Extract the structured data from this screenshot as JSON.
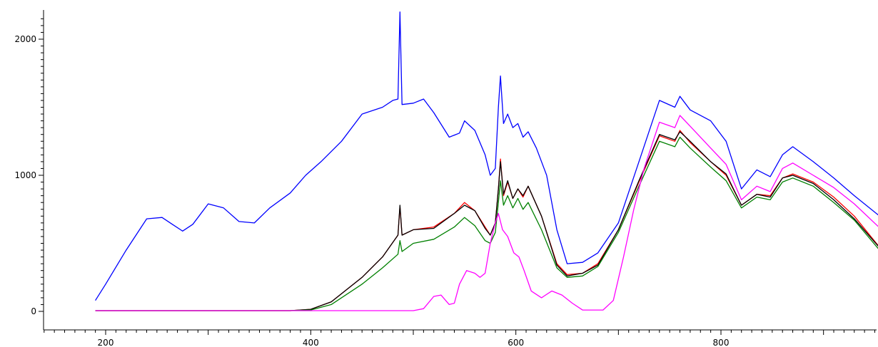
{
  "chart_data": {
    "type": "line",
    "title": "",
    "xlabel": "",
    "ylabel": "",
    "xlim": [
      140,
      960
    ],
    "ylim": [
      -50,
      2200
    ],
    "x_ticks": [
      "200",
      "400",
      "600",
      "800"
    ],
    "y_ticks": [
      "0",
      "1000",
      "2000"
    ],
    "grid": false,
    "legend": "none",
    "series": [
      {
        "color": "#0000ff",
        "points": [
          [
            190,
            80
          ],
          [
            200,
            200
          ],
          [
            220,
            450
          ],
          [
            240,
            680
          ],
          [
            255,
            690
          ],
          [
            265,
            640
          ],
          [
            275,
            590
          ],
          [
            285,
            640
          ],
          [
            300,
            790
          ],
          [
            315,
            760
          ],
          [
            330,
            660
          ],
          [
            345,
            650
          ],
          [
            360,
            760
          ],
          [
            380,
            870
          ],
          [
            395,
            1000
          ],
          [
            410,
            1100
          ],
          [
            430,
            1250
          ],
          [
            450,
            1450
          ],
          [
            470,
            1500
          ],
          [
            480,
            1550
          ],
          [
            485,
            1560
          ],
          [
            487,
            2200
          ],
          [
            489,
            1520
          ],
          [
            500,
            1530
          ],
          [
            510,
            1560
          ],
          [
            520,
            1460
          ],
          [
            535,
            1280
          ],
          [
            545,
            1310
          ],
          [
            550,
            1400
          ],
          [
            560,
            1330
          ],
          [
            570,
            1150
          ],
          [
            575,
            1000
          ],
          [
            580,
            1050
          ],
          [
            583,
            1500
          ],
          [
            585,
            1730
          ],
          [
            588,
            1380
          ],
          [
            592,
            1450
          ],
          [
            597,
            1350
          ],
          [
            602,
            1380
          ],
          [
            607,
            1280
          ],
          [
            612,
            1320
          ],
          [
            620,
            1200
          ],
          [
            630,
            1000
          ],
          [
            640,
            600
          ],
          [
            650,
            350
          ],
          [
            665,
            360
          ],
          [
            680,
            430
          ],
          [
            700,
            650
          ],
          [
            720,
            1100
          ],
          [
            740,
            1550
          ],
          [
            755,
            1500
          ],
          [
            760,
            1580
          ],
          [
            770,
            1480
          ],
          [
            790,
            1400
          ],
          [
            805,
            1250
          ],
          [
            820,
            900
          ],
          [
            835,
            1040
          ],
          [
            848,
            990
          ],
          [
            860,
            1150
          ],
          [
            870,
            1210
          ],
          [
            890,
            1100
          ],
          [
            910,
            980
          ],
          [
            930,
            850
          ],
          [
            958,
            680
          ]
        ]
      },
      {
        "color": "#ff0000",
        "points": [
          [
            190,
            5
          ],
          [
            380,
            5
          ],
          [
            400,
            15
          ],
          [
            420,
            70
          ],
          [
            450,
            250
          ],
          [
            470,
            400
          ],
          [
            485,
            560
          ],
          [
            487,
            770
          ],
          [
            489,
            560
          ],
          [
            500,
            600
          ],
          [
            520,
            620
          ],
          [
            540,
            720
          ],
          [
            550,
            800
          ],
          [
            560,
            740
          ],
          [
            570,
            620
          ],
          [
            575,
            560
          ],
          [
            580,
            650
          ],
          [
            583,
            900
          ],
          [
            585,
            1120
          ],
          [
            588,
            850
          ],
          [
            592,
            950
          ],
          [
            597,
            830
          ],
          [
            602,
            900
          ],
          [
            607,
            840
          ],
          [
            612,
            920
          ],
          [
            625,
            700
          ],
          [
            640,
            350
          ],
          [
            650,
            270
          ],
          [
            665,
            280
          ],
          [
            680,
            350
          ],
          [
            700,
            600
          ],
          [
            720,
            950
          ],
          [
            740,
            1290
          ],
          [
            755,
            1250
          ],
          [
            760,
            1330
          ],
          [
            770,
            1240
          ],
          [
            790,
            1100
          ],
          [
            805,
            1000
          ],
          [
            820,
            780
          ],
          [
            835,
            860
          ],
          [
            848,
            850
          ],
          [
            860,
            980
          ],
          [
            870,
            1010
          ],
          [
            890,
            950
          ],
          [
            910,
            840
          ],
          [
            930,
            700
          ],
          [
            958,
            440
          ]
        ]
      },
      {
        "color": "#000000",
        "points": [
          [
            190,
            5
          ],
          [
            380,
            5
          ],
          [
            400,
            15
          ],
          [
            420,
            70
          ],
          [
            450,
            250
          ],
          [
            470,
            400
          ],
          [
            485,
            560
          ],
          [
            487,
            780
          ],
          [
            489,
            560
          ],
          [
            500,
            600
          ],
          [
            520,
            610
          ],
          [
            540,
            720
          ],
          [
            550,
            780
          ],
          [
            560,
            740
          ],
          [
            570,
            610
          ],
          [
            575,
            560
          ],
          [
            580,
            650
          ],
          [
            583,
            900
          ],
          [
            585,
            1100
          ],
          [
            588,
            860
          ],
          [
            592,
            960
          ],
          [
            597,
            830
          ],
          [
            602,
            900
          ],
          [
            607,
            850
          ],
          [
            612,
            920
          ],
          [
            625,
            700
          ],
          [
            640,
            340
          ],
          [
            650,
            260
          ],
          [
            665,
            280
          ],
          [
            680,
            340
          ],
          [
            700,
            600
          ],
          [
            720,
            960
          ],
          [
            740,
            1300
          ],
          [
            755,
            1260
          ],
          [
            760,
            1320
          ],
          [
            770,
            1250
          ],
          [
            790,
            1100
          ],
          [
            805,
            1010
          ],
          [
            820,
            780
          ],
          [
            835,
            860
          ],
          [
            848,
            840
          ],
          [
            860,
            980
          ],
          [
            870,
            1000
          ],
          [
            890,
            940
          ],
          [
            910,
            820
          ],
          [
            930,
            680
          ],
          [
            958,
            440
          ]
        ]
      },
      {
        "color": "#008000",
        "points": [
          [
            190,
            5
          ],
          [
            380,
            5
          ],
          [
            400,
            10
          ],
          [
            420,
            50
          ],
          [
            450,
            200
          ],
          [
            470,
            320
          ],
          [
            485,
            420
          ],
          [
            487,
            520
          ],
          [
            489,
            440
          ],
          [
            500,
            500
          ],
          [
            520,
            530
          ],
          [
            540,
            620
          ],
          [
            550,
            690
          ],
          [
            560,
            630
          ],
          [
            570,
            520
          ],
          [
            575,
            500
          ],
          [
            580,
            580
          ],
          [
            583,
            800
          ],
          [
            585,
            960
          ],
          [
            588,
            780
          ],
          [
            592,
            850
          ],
          [
            597,
            760
          ],
          [
            602,
            830
          ],
          [
            607,
            750
          ],
          [
            612,
            800
          ],
          [
            625,
            600
          ],
          [
            640,
            320
          ],
          [
            650,
            250
          ],
          [
            665,
            260
          ],
          [
            680,
            330
          ],
          [
            700,
            580
          ],
          [
            720,
            920
          ],
          [
            740,
            1250
          ],
          [
            755,
            1210
          ],
          [
            760,
            1280
          ],
          [
            770,
            1200
          ],
          [
            790,
            1060
          ],
          [
            805,
            960
          ],
          [
            820,
            760
          ],
          [
            835,
            840
          ],
          [
            848,
            820
          ],
          [
            860,
            950
          ],
          [
            870,
            980
          ],
          [
            890,
            920
          ],
          [
            910,
            800
          ],
          [
            930,
            670
          ],
          [
            958,
            420
          ]
        ]
      },
      {
        "color": "#ff00ff",
        "points": [
          [
            190,
            5
          ],
          [
            500,
            5
          ],
          [
            510,
            20
          ],
          [
            520,
            110
          ],
          [
            527,
            120
          ],
          [
            535,
            50
          ],
          [
            540,
            60
          ],
          [
            545,
            200
          ],
          [
            552,
            300
          ],
          [
            560,
            280
          ],
          [
            565,
            250
          ],
          [
            570,
            280
          ],
          [
            575,
            500
          ],
          [
            580,
            650
          ],
          [
            583,
            720
          ],
          [
            587,
            600
          ],
          [
            592,
            550
          ],
          [
            598,
            430
          ],
          [
            603,
            400
          ],
          [
            608,
            300
          ],
          [
            615,
            150
          ],
          [
            625,
            100
          ],
          [
            635,
            150
          ],
          [
            645,
            120
          ],
          [
            655,
            60
          ],
          [
            665,
            10
          ],
          [
            685,
            10
          ],
          [
            695,
            80
          ],
          [
            705,
            400
          ],
          [
            715,
            750
          ],
          [
            725,
            1050
          ],
          [
            740,
            1390
          ],
          [
            755,
            1350
          ],
          [
            760,
            1440
          ],
          [
            770,
            1360
          ],
          [
            790,
            1200
          ],
          [
            805,
            1080
          ],
          [
            820,
            820
          ],
          [
            835,
            920
          ],
          [
            848,
            880
          ],
          [
            860,
            1050
          ],
          [
            870,
            1090
          ],
          [
            890,
            1000
          ],
          [
            910,
            910
          ],
          [
            930,
            790
          ],
          [
            958,
            590
          ]
        ]
      }
    ]
  }
}
